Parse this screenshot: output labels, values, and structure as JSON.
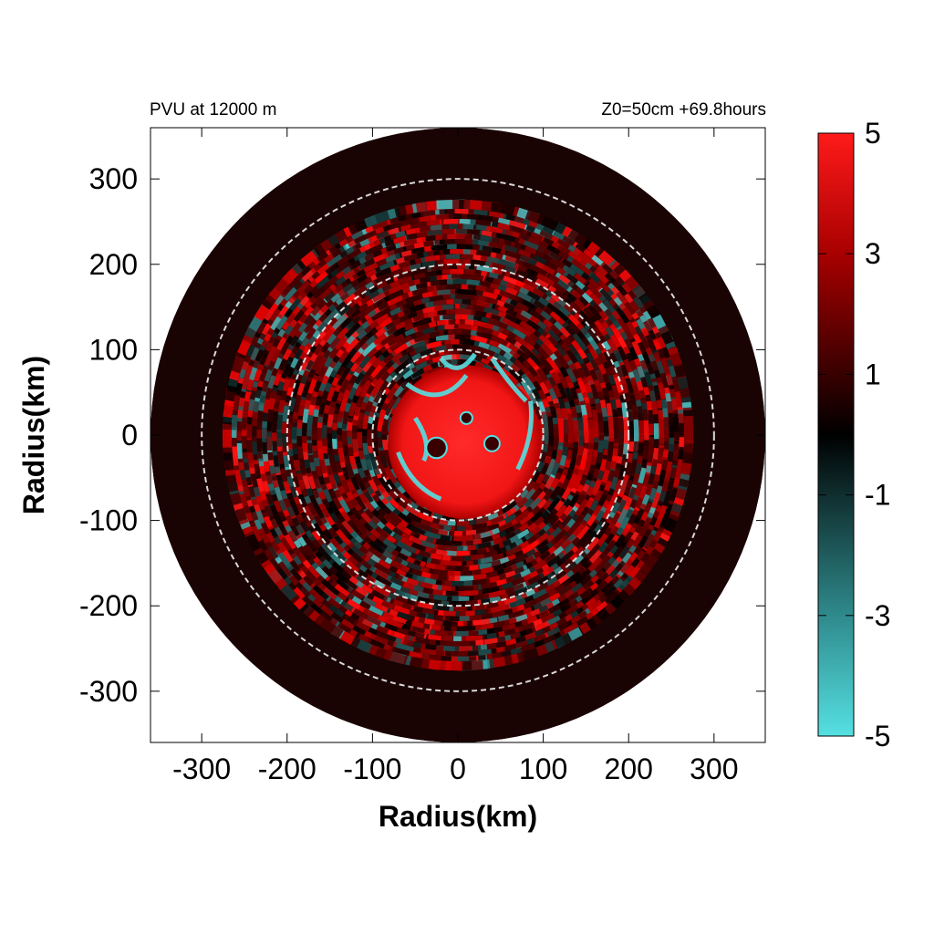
{
  "chart_data": {
    "type": "heatmap",
    "title_left": "PVU at 12000 m",
    "title_right": "Z0=50cm  +69.8hours",
    "xlabel": "Radius(km)",
    "ylabel": "Radius(km)",
    "xlim": [
      -360,
      360
    ],
    "ylim": [
      -360,
      360
    ],
    "x_ticks": [
      -300,
      -200,
      -100,
      0,
      100,
      200,
      300
    ],
    "y_ticks": [
      300,
      200,
      100,
      0,
      -100,
      -200,
      -300
    ],
    "domain_radius_km": 360,
    "reference_circles_km": [
      100,
      200,
      300
    ],
    "colorbar": {
      "range": [
        -5,
        5
      ],
      "ticks": [
        5,
        3,
        1,
        -1,
        -3,
        -5
      ],
      "colors": {
        "min": "#55dde0",
        "mid": "#000000",
        "max": "#ff1a1a"
      }
    },
    "features": {
      "core_value": 5,
      "core_radius_km": 90,
      "core_eye_ring_value": -5,
      "background_range": [
        -3,
        3
      ]
    }
  }
}
